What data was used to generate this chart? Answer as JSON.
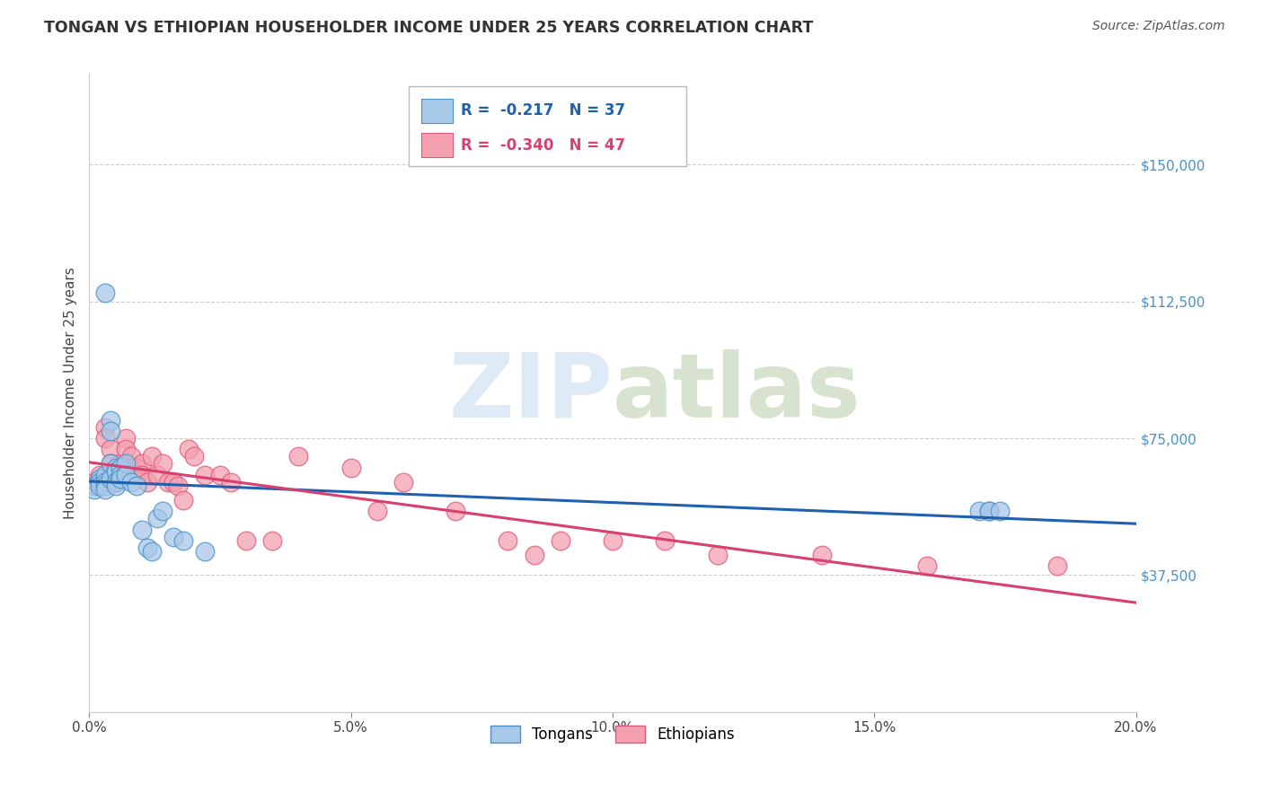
{
  "title": "TONGAN VS ETHIOPIAN HOUSEHOLDER INCOME UNDER 25 YEARS CORRELATION CHART",
  "source": "Source: ZipAtlas.com",
  "ylabel": "Householder Income Under 25 years",
  "xlim": [
    0.0,
    0.2
  ],
  "ylim": [
    0,
    175000
  ],
  "yticks": [
    0,
    37500,
    75000,
    112500,
    150000
  ],
  "xticks": [
    0.0,
    0.05,
    0.1,
    0.15,
    0.2
  ],
  "xtick_labels": [
    "0.0%",
    "5.0%",
    "10.0%",
    "15.0%",
    "20.0%"
  ],
  "ytick_labels_right": [
    "",
    "$37,500",
    "$75,000",
    "$112,500",
    "$150,000"
  ],
  "legend_labels": [
    "Tongans",
    "Ethiopians"
  ],
  "tongan_R": "-0.217",
  "tongan_N": "37",
  "ethiopian_R": "-0.340",
  "ethiopian_N": "47",
  "blue_fill": "#a8c8e8",
  "blue_edge": "#4a90c8",
  "pink_fill": "#f4a0b0",
  "pink_edge": "#e05878",
  "blue_line": "#2060b0",
  "pink_line": "#d84070",
  "watermark_color": "#e0e8f0",
  "tongan_x": [
    0.001,
    0.001,
    0.002,
    0.002,
    0.002,
    0.003,
    0.003,
    0.003,
    0.003,
    0.003,
    0.004,
    0.004,
    0.004,
    0.004,
    0.005,
    0.005,
    0.005,
    0.005,
    0.006,
    0.006,
    0.006,
    0.007,
    0.007,
    0.008,
    0.009,
    0.01,
    0.011,
    0.012,
    0.013,
    0.014,
    0.016,
    0.018,
    0.022,
    0.17,
    0.172,
    0.172,
    0.174
  ],
  "tongan_y": [
    62000,
    61000,
    64000,
    63000,
    62000,
    115000,
    65000,
    63000,
    62000,
    61000,
    80000,
    77000,
    68000,
    64000,
    67000,
    66000,
    63000,
    62000,
    67000,
    65000,
    64000,
    68000,
    65000,
    63000,
    62000,
    50000,
    45000,
    44000,
    53000,
    55000,
    48000,
    47000,
    44000,
    55000,
    55000,
    55000,
    55000
  ],
  "ethiopian_x": [
    0.001,
    0.002,
    0.003,
    0.003,
    0.004,
    0.004,
    0.005,
    0.005,
    0.006,
    0.006,
    0.007,
    0.007,
    0.008,
    0.008,
    0.009,
    0.009,
    0.01,
    0.01,
    0.011,
    0.012,
    0.013,
    0.014,
    0.015,
    0.016,
    0.017,
    0.018,
    0.019,
    0.02,
    0.022,
    0.025,
    0.027,
    0.03,
    0.035,
    0.04,
    0.05,
    0.055,
    0.06,
    0.07,
    0.08,
    0.085,
    0.09,
    0.1,
    0.11,
    0.12,
    0.14,
    0.16,
    0.185
  ],
  "ethiopian_y": [
    63000,
    65000,
    78000,
    75000,
    72000,
    68000,
    65000,
    63000,
    68000,
    65000,
    75000,
    72000,
    70000,
    67000,
    67000,
    65000,
    68000,
    65000,
    63000,
    70000,
    65000,
    68000,
    63000,
    63000,
    62000,
    58000,
    72000,
    70000,
    65000,
    65000,
    63000,
    47000,
    47000,
    70000,
    67000,
    55000,
    63000,
    55000,
    47000,
    43000,
    47000,
    47000,
    47000,
    43000,
    43000,
    40000,
    40000
  ]
}
